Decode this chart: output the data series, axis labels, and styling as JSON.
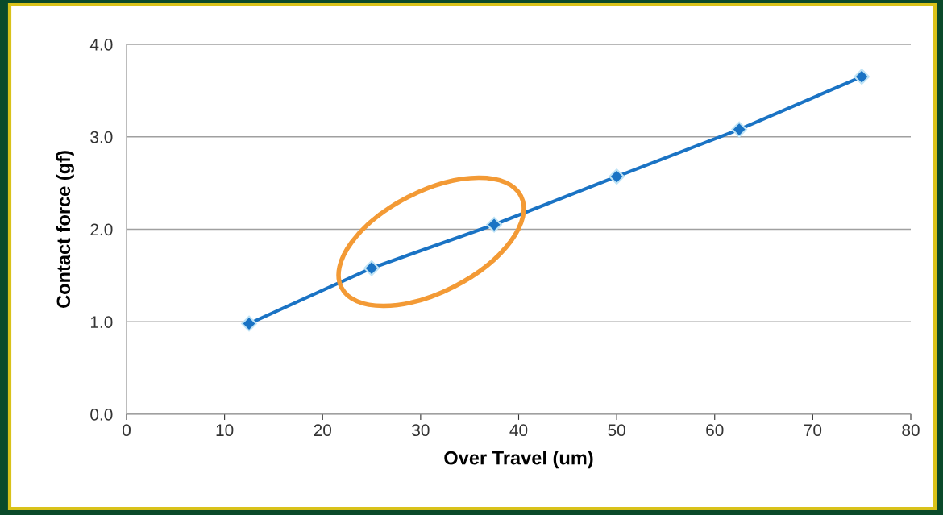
{
  "chart_data": {
    "type": "line",
    "xlabel": "Over Travel (um)",
    "ylabel": "Contact force (gf)",
    "x": [
      12.5,
      25,
      37.5,
      50,
      62.5,
      75
    ],
    "series": [
      {
        "color": "#1a73c4",
        "values": [
          0.98,
          1.58,
          2.05,
          2.57,
          3.08,
          3.65
        ]
      }
    ],
    "xlim": [
      0,
      80
    ],
    "xticks": [
      0,
      10,
      20,
      30,
      40,
      50,
      60,
      70,
      80
    ],
    "ylim": [
      0,
      4
    ],
    "yticks": [
      {
        "value": 0,
        "label": "0.0"
      },
      {
        "value": 1,
        "label": "1.0"
      },
      {
        "value": 2,
        "label": "2.0"
      },
      {
        "value": 3,
        "label": "3.0"
      },
      {
        "value": 4,
        "label": "4.0"
      }
    ],
    "grid": "y",
    "marker": "diamond",
    "line_style": "solid"
  }
}
